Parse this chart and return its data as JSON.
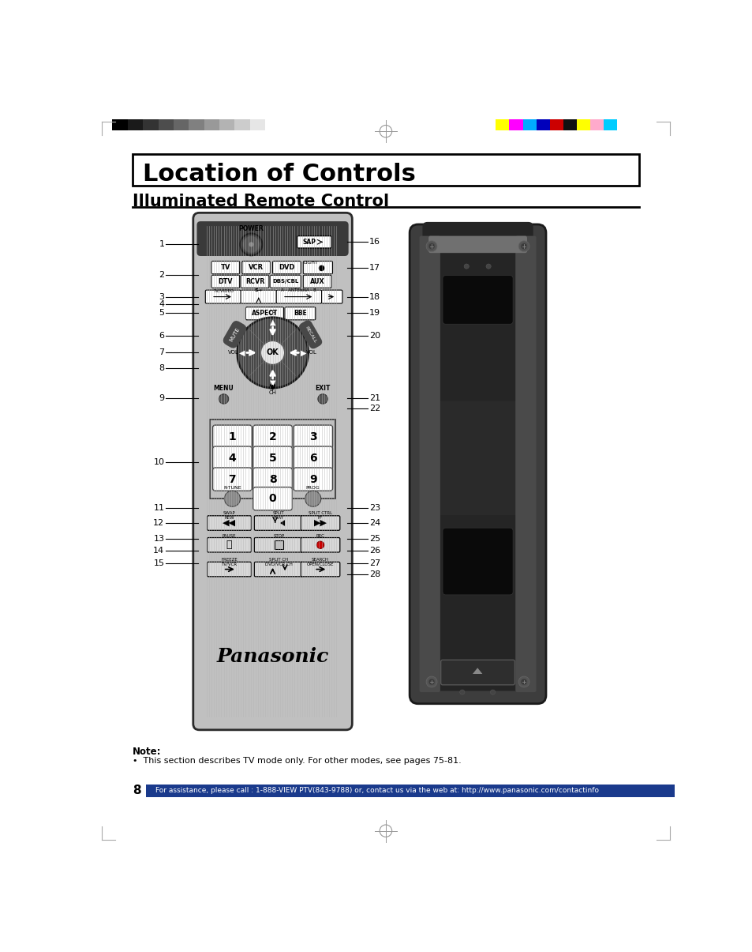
{
  "title": "Location of Controls",
  "subtitle": "Illuminated Remote Control",
  "page_number": "8",
  "footer_text": "For assistance, please call : 1-888-VIEW PTV(843-9788) or, contact us via the web at: http://www.panasonic.com/contactinfo",
  "note_title": "Note:",
  "note_body": "•  This section describes TV mode only. For other modes, see pages 75-81.",
  "bg_color": "#ffffff",
  "footer_bg": "#1a3a8c",
  "color_bars_left": [
    "#000000",
    "#1a1a1a",
    "#333333",
    "#4d4d4d",
    "#666666",
    "#808080",
    "#999999",
    "#b3b3b3",
    "#cccccc",
    "#e6e6e6",
    "#ffffff"
  ],
  "color_bars_right": [
    "#ffff00",
    "#ff00ff",
    "#00aaff",
    "#0000bb",
    "#cc0000",
    "#111111",
    "#ffff00",
    "#ffaacc",
    "#00ccff"
  ]
}
